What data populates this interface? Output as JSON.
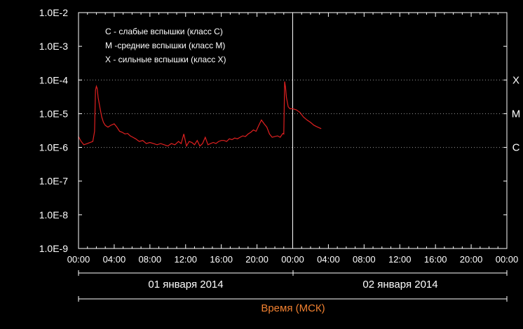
{
  "chart_data": {
    "type": "line",
    "y_scale": "log",
    "ylim": [
      1e-09,
      0.01
    ],
    "y_ticks": [
      "1.0E-9",
      "1.0E-8",
      "1.0E-7",
      "1.0E-6",
      "1.0E-5",
      "1.0E-4",
      "1.0E-3",
      "1.0E-2"
    ],
    "x_ticks": [
      "00:00",
      "04:00",
      "08:00",
      "12:00",
      "16:00",
      "20:00",
      "00:00",
      "04:00",
      "08:00",
      "12:00",
      "16:00",
      "20:00",
      "00:00"
    ],
    "x_range_hours": [
      0,
      48
    ],
    "day_labels": [
      "01 января 2014",
      "02 января 2014"
    ],
    "xlabel": "Время (МСК)",
    "legend": [
      "C - слабые вспышки (класс C)",
      "M -средние вспышки (класс M)",
      "X - сильные вспышки (класс X)"
    ],
    "thresholds": [
      {
        "label": "X",
        "value": 0.0001
      },
      {
        "label": "M",
        "value": 1e-05
      },
      {
        "label": "C",
        "value": 1e-06
      }
    ],
    "grid": "dotted threshold lines at C, M, X",
    "colors": {
      "series": "#e02020",
      "axis_title": "#f08030",
      "text": "#ffffff"
    },
    "series": [
      {
        "hours": [
          0,
          0.3,
          0.6,
          1.0,
          1.3,
          1.6,
          1.8,
          1.9,
          2.0,
          2.1,
          2.2,
          2.4,
          2.6,
          2.8,
          3.0,
          3.3,
          3.6,
          4.0,
          4.3,
          4.6,
          4.9,
          5.2,
          5.5,
          5.8,
          6.1,
          6.4,
          6.8,
          7.2,
          7.6,
          8.0,
          8.4,
          8.8,
          9.2,
          9.6,
          10.0,
          10.4,
          10.8,
          11.2,
          11.5,
          11.8,
          12.1,
          12.4,
          12.7,
          13.0,
          13.3,
          13.6,
          13.9,
          14.2,
          14.5,
          14.8,
          15.1,
          15.4,
          15.7,
          16.0,
          16.3,
          16.6,
          16.9,
          17.2,
          17.5,
          17.8,
          18.1,
          18.4,
          18.7,
          19.0,
          19.3,
          19.6,
          19.9,
          20.2,
          20.5,
          20.8,
          21.1,
          21.4,
          21.7,
          22.0,
          22.3,
          22.6,
          22.8,
          22.9,
          23.0,
          23.1,
          23.2,
          23.3,
          23.5,
          23.7,
          24.0,
          24.4,
          24.8,
          25.2,
          25.6,
          26.0,
          26.4,
          26.8,
          27.2
        ],
        "values": [
          2.1e-06,
          1.5e-06,
          1.2e-06,
          1.3e-06,
          1.4e-06,
          1.5e-06,
          3e-06,
          5e-05,
          6.5e-05,
          5.5e-05,
          3e-05,
          1.5e-05,
          8e-06,
          5.5e-06,
          4.5e-06,
          4e-06,
          4.5e-06,
          5e-06,
          4e-06,
          3e-06,
          2.8e-06,
          2.5e-06,
          2.6e-06,
          2.2e-06,
          2e-06,
          1.8e-06,
          1.5e-06,
          1.6e-06,
          1.3e-06,
          1.4e-06,
          1.3e-06,
          1.2e-06,
          1.3e-06,
          1.2e-06,
          1.1e-06,
          1.3e-06,
          1.2e-06,
          1.5e-06,
          1.3e-06,
          2.5e-06,
          1.1e-06,
          1.5e-06,
          1.4e-06,
          1.2e-06,
          1.6e-06,
          1.1e-06,
          1.3e-06,
          2e-06,
          1.2e-06,
          1.3e-06,
          1.4e-06,
          1.3e-06,
          1.5e-06,
          1.6e-06,
          1.6e-06,
          1.5e-06,
          1.8e-06,
          1.7e-06,
          1.9e-06,
          1.8e-06,
          2e-06,
          2.2e-06,
          2.1e-06,
          2.5e-06,
          2.8e-06,
          3.3e-06,
          3e-06,
          4.5e-06,
          6.5e-06,
          5e-06,
          4e-06,
          2.5e-06,
          2e-06,
          2.1e-06,
          2.2e-06,
          2e-06,
          2.4e-06,
          2.6e-06,
          2.5e-06,
          9e-05,
          6e-05,
          3e-05,
          1.6e-05,
          1.4e-05,
          1.4e-05,
          1.3e-05,
          1.1e-05,
          8e-06,
          6.5e-06,
          5.5e-06,
          4.5e-06,
          4e-06,
          3.6e-06
        ]
      }
    ]
  }
}
